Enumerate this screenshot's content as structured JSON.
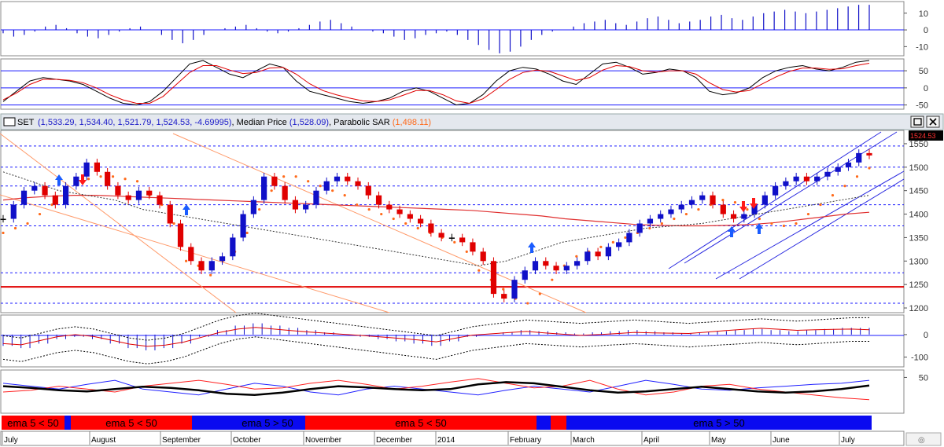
{
  "header": {
    "symbol": "SET",
    "ohlc": "(1,533.29, 1,534.40, 1,521.79, 1,524.53, -4.69995)",
    "median_label": "Median Price",
    "median_value": "(1,528.09)",
    "sar_label": "Parabolic SAR",
    "sar_value": "(1,498.11)",
    "separator": ", "
  },
  "price_tag": "1524.53",
  "colors": {
    "up": "#1010c8",
    "down": "#e00000",
    "neutral": "#000000",
    "sar": "#ff6a1a",
    "channel": "#2a2ae0",
    "support": "#e00000",
    "long_ma": "#e03030",
    "dotted": "#1a1aff"
  },
  "icons": {
    "maximize": "maximize-icon",
    "close": "close-icon"
  },
  "timeline": {
    "months": [
      "July",
      "August",
      "September",
      "October",
      "November",
      "December",
      "2014",
      "February",
      "March",
      "April",
      "May",
      "June",
      "July"
    ]
  },
  "bands": [
    {
      "label": "ema 5 < 50",
      "color": "#ff0000"
    },
    {
      "label": "",
      "color": "#0a0af0"
    },
    {
      "label": "ema 5 < 50",
      "color": "#ff0000"
    },
    {
      "label": "",
      "color": "#0a0af0"
    },
    {
      "label": "ema 5 > 50",
      "color": "#0a0af0"
    },
    {
      "label": "ema 5 < 50",
      "color": "#ff0000"
    },
    {
      "label": "",
      "color": "#0a0af0"
    },
    {
      "label": "",
      "color": "#ff0000"
    },
    {
      "label": "ema 5 > 50",
      "color": "#0a0af0"
    }
  ],
  "chart_data": [
    {
      "type": "bar",
      "panel": "momentum histogram",
      "ylim": [
        -15,
        16
      ],
      "yticks": [
        "10",
        "0",
        "-10"
      ],
      "values": [
        -2,
        -4,
        -3,
        -1,
        2,
        3,
        1,
        -2,
        -4,
        -5,
        -3,
        -1,
        1,
        2,
        0,
        -3,
        -6,
        -8,
        -6,
        -3,
        0,
        1,
        2,
        3,
        1,
        -1,
        -2,
        -1,
        1,
        3,
        5,
        6,
        4,
        2,
        0,
        -1,
        -2,
        -4,
        -6,
        -5,
        -3,
        -2,
        -1,
        -3,
        -6,
        -9,
        -12,
        -14,
        -13,
        -10,
        -6,
        -3,
        -1,
        0,
        2,
        4,
        5,
        6,
        4,
        3,
        5,
        7,
        8,
        6,
        4,
        5,
        6,
        8,
        9,
        7,
        6,
        8,
        10,
        11,
        12,
        11,
        10,
        11,
        12,
        13,
        14,
        15,
        15
      ]
    },
    {
      "type": "line",
      "panel": "stochastic oscillator",
      "ylim": [
        -60,
        80
      ],
      "yticks": [
        "50",
        "0",
        "-50"
      ],
      "hlines": [
        50,
        0,
        -50
      ],
      "series": [
        {
          "values": [
            -40,
            -10,
            20,
            30,
            25,
            20,
            10,
            -10,
            -30,
            -45,
            -50,
            -40,
            -10,
            30,
            70,
            80,
            60,
            40,
            30,
            50,
            70,
            60,
            20,
            -10,
            -20,
            -30,
            -40,
            -45,
            -40,
            -30,
            -10,
            0,
            -10,
            -30,
            -50,
            -45,
            -20,
            20,
            50,
            60,
            55,
            40,
            20,
            10,
            40,
            70,
            75,
            60,
            40,
            45,
            55,
            50,
            30,
            -10,
            -20,
            -15,
            0,
            30,
            50,
            60,
            65,
            55,
            50,
            60,
            75,
            80
          ]
        },
        {
          "values": [
            -35,
            -15,
            10,
            25,
            25,
            22,
            15,
            0,
            -20,
            -35,
            -45,
            -45,
            -25,
            10,
            45,
            65,
            65,
            52,
            42,
            45,
            58,
            60,
            40,
            12,
            -8,
            -20,
            -30,
            -38,
            -40,
            -35,
            -22,
            -8,
            -8,
            -20,
            -38,
            -45,
            -32,
            -5,
            25,
            45,
            52,
            48,
            35,
            22,
            30,
            52,
            65,
            62,
            50,
            46,
            50,
            50,
            40,
            15,
            -5,
            -12,
            -8,
            12,
            32,
            48,
            58,
            58,
            54,
            56,
            65,
            72
          ]
        }
      ]
    },
    {
      "type": "candlestick",
      "panel": "SET price",
      "ylim": [
        1190,
        1575
      ],
      "yticks": [
        "1550",
        "1500",
        "1450",
        "1400",
        "1350",
        "1300",
        "1250",
        "1200"
      ],
      "hlines": [
        1545,
        1500,
        1460,
        1420,
        1375,
        1275,
        1245,
        1210
      ],
      "support_line": 1245,
      "close": [
        1390,
        1420,
        1450,
        1460,
        1440,
        1420,
        1460,
        1480,
        1510,
        1490,
        1460,
        1440,
        1430,
        1450,
        1440,
        1420,
        1380,
        1330,
        1300,
        1280,
        1300,
        1310,
        1350,
        1400,
        1430,
        1480,
        1460,
        1430,
        1410,
        1420,
        1450,
        1470,
        1480,
        1470,
        1460,
        1440,
        1420,
        1410,
        1400,
        1390,
        1380,
        1360,
        1350,
        1350,
        1340,
        1320,
        1300,
        1230,
        1220,
        1260,
        1280,
        1300,
        1290,
        1280,
        1290,
        1300,
        1320,
        1310,
        1330,
        1340,
        1360,
        1380,
        1390,
        1400,
        1410,
        1420,
        1430,
        1440,
        1420,
        1400,
        1390,
        1400,
        1420,
        1440,
        1460,
        1470,
        1480,
        1470,
        1480,
        1490,
        1500,
        1510,
        1530,
        1525
      ],
      "sar": [
        1360,
        1370,
        1380,
        1400,
        1420,
        1440,
        1470,
        1475,
        1480,
        1480,
        1475,
        1470,
        1440,
        1420,
        1380,
        1300,
        1290,
        1270,
        1300,
        1320,
        1360,
        1410,
        1450,
        1480,
        1480,
        1470,
        1460,
        1450,
        1440,
        1420,
        1410,
        1400,
        1390,
        1380,
        1370,
        1360,
        1350,
        1340,
        1320,
        1280,
        1260,
        1240,
        1220,
        1210,
        1230,
        1260,
        1290,
        1310,
        1320,
        1330,
        1340,
        1350,
        1360,
        1370,
        1380,
        1390,
        1400,
        1410,
        1420,
        1430,
        1425,
        1410,
        1390,
        1380,
        1375,
        1380,
        1400,
        1420,
        1440,
        1460,
        1480,
        1498
      ],
      "ma_long": [
        1430,
        1435,
        1438,
        1440,
        1440,
        1438,
        1436,
        1434,
        1432,
        1430,
        1428,
        1426,
        1424,
        1422,
        1420,
        1418,
        1416,
        1414,
        1412,
        1410,
        1408,
        1404,
        1400,
        1396,
        1390,
        1386,
        1382,
        1378,
        1376,
        1375,
        1375,
        1376,
        1378,
        1382,
        1388,
        1394,
        1400,
        1404
      ],
      "ma_mid": [
        1490,
        1470,
        1450,
        1440,
        1430,
        1410,
        1400,
        1390,
        1380,
        1370,
        1360,
        1350,
        1340,
        1330,
        1320,
        1310,
        1300,
        1290,
        1300,
        1320,
        1340,
        1350,
        1360,
        1370,
        1375,
        1380,
        1390,
        1400,
        1410,
        1420,
        1430,
        1440
      ]
    },
    {
      "type": "bar",
      "panel": "MACD histogram",
      "ylim": [
        -140,
        80
      ],
      "yticks": [
        "0",
        "-100"
      ],
      "values": [
        -50,
        -60,
        -40,
        -20,
        -10,
        -20,
        -40,
        -60,
        -70,
        -60,
        -40,
        -10,
        20,
        40,
        50,
        40,
        30,
        20,
        10,
        0,
        -10,
        -20,
        -30,
        -40,
        -50,
        -30,
        -10,
        0,
        10,
        20,
        15,
        10,
        5,
        10,
        15,
        20,
        15,
        10,
        5,
        10,
        15,
        20,
        25,
        20,
        15,
        20,
        25,
        30,
        30
      ]
    },
    {
      "type": "line",
      "panel": "DMI / ADX",
      "ylim": [
        -10,
        60
      ],
      "yticks": [
        "50"
      ],
      "series": [
        {
          "values": [
            40,
            35,
            30,
            38,
            45,
            30,
            25,
            20,
            30,
            40,
            35,
            25,
            20,
            30,
            35,
            30,
            25,
            20,
            28,
            35,
            30,
            25,
            35,
            45,
            38,
            30,
            28,
            32,
            35,
            38,
            40,
            45
          ]
        },
        {
          "values": [
            25,
            28,
            35,
            30,
            25,
            35,
            40,
            45,
            38,
            30,
            32,
            40,
            45,
            38,
            30,
            35,
            42,
            48,
            40,
            32,
            35,
            45,
            30,
            20,
            25,
            35,
            38,
            30,
            25,
            20,
            15,
            12
          ]
        },
        {
          "values": [
            35,
            32,
            28,
            26,
            30,
            34,
            32,
            28,
            22,
            20,
            24,
            30,
            35,
            33,
            30,
            28,
            30,
            38,
            42,
            40,
            34,
            28,
            24,
            26,
            30,
            34,
            30,
            26,
            24,
            26,
            30,
            36
          ]
        }
      ]
    }
  ]
}
